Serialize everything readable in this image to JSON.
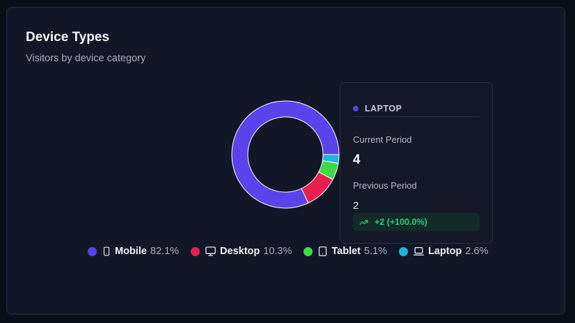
{
  "card": {
    "title": "Device Types",
    "subtitle": "Visitors by device category"
  },
  "chart_data": {
    "type": "pie",
    "variant": "donut",
    "categories": [
      "Mobile",
      "Desktop",
      "Tablet",
      "Laptop"
    ],
    "values": [
      82.1,
      10.3,
      5.1,
      2.6
    ],
    "unit": "%",
    "colors": [
      "#5b43eb",
      "#e8204f",
      "#3ddc47",
      "#22b3d9"
    ],
    "legend_position": "bottom"
  },
  "legend": [
    {
      "name": "Mobile",
      "pct": "82.1%",
      "color": "#5b43eb",
      "icon": "smartphone-icon"
    },
    {
      "name": "Desktop",
      "pct": "10.3%",
      "color": "#e8204f",
      "icon": "monitor-icon"
    },
    {
      "name": "Tablet",
      "pct": "5.1%",
      "color": "#3ddc47",
      "icon": "tablet-icon"
    },
    {
      "name": "Laptop",
      "pct": "2.6%",
      "color": "#22b3d9",
      "icon": "laptop-icon"
    }
  ],
  "tooltip": {
    "name": "LAPTOP",
    "dot_color": "#5b43eb",
    "current_label": "Current Period",
    "current_value": "4",
    "previous_label": "Previous Period",
    "previous_value": "2",
    "change": "+2 (+100.0%)",
    "change_icon": "trending-up-icon"
  }
}
